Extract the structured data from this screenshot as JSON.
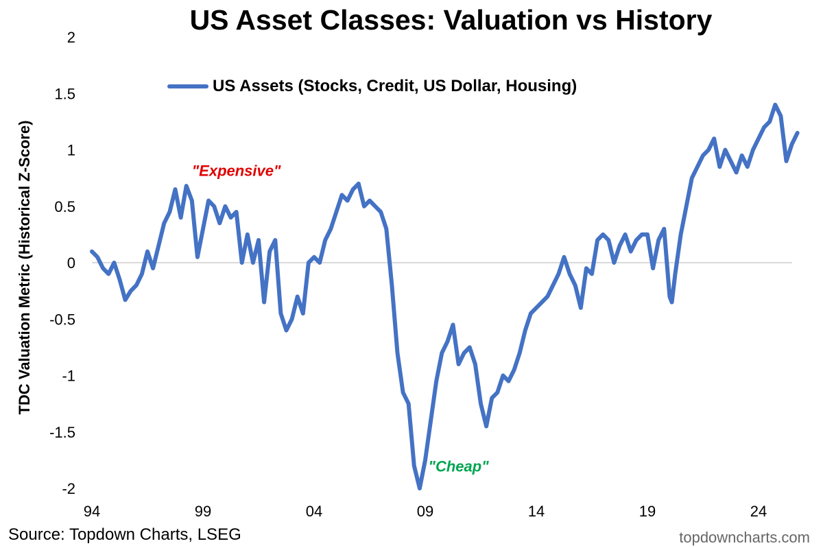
{
  "title": "US Asset Classes: Valuation vs History",
  "ylabel": "TDC Valuation Metric (Historical Z-Score)",
  "legend_label": "US Assets (Stocks, Credit, US Dollar, Housing)",
  "source": "Source: Topdown Charts, LSEG",
  "watermark": "topdowncharts.com",
  "colors": {
    "line": "#4472C4",
    "expensive": "#E00000",
    "cheap": "#00A550",
    "zero_line": "#D9D9D9"
  },
  "chart_data": {
    "type": "line",
    "title": "US Asset Classes: Valuation vs History",
    "xlabel": "",
    "ylabel": "TDC Valuation Metric (Historical Z-Score)",
    "ylim": [
      -2,
      2
    ],
    "xlim": [
      1994,
      2025.8
    ],
    "x_ticks": [
      1994,
      1999,
      2004,
      2009,
      2014,
      2019,
      2024
    ],
    "x_tick_labels": [
      "94",
      "99",
      "04",
      "09",
      "14",
      "19",
      "24"
    ],
    "y_ticks": [
      2,
      1.5,
      1,
      0.5,
      0,
      -0.5,
      -1,
      -1.5,
      -2
    ],
    "y_tick_labels": [
      "2",
      "1.5",
      "1",
      "0.5",
      "0",
      "-0.5",
      "-1",
      "-1.5",
      "-2"
    ],
    "grid": false,
    "legend_position": "top-left",
    "annotations": [
      {
        "text": "\"Expensive\"",
        "x": 2000.5,
        "y": 0.77,
        "color_key": "expensive"
      },
      {
        "text": "\"Cheap\"",
        "x": 2010.5,
        "y": -1.85,
        "color_key": "cheap"
      }
    ],
    "series": [
      {
        "name": "US Assets (Stocks, Credit, US Dollar, Housing)",
        "x": [
          1994.0,
          1994.25,
          1994.5,
          1994.75,
          1995.0,
          1995.25,
          1995.5,
          1995.75,
          1996.0,
          1996.25,
          1996.5,
          1996.75,
          1997.0,
          1997.25,
          1997.5,
          1997.75,
          1998.0,
          1998.25,
          1998.5,
          1998.75,
          1999.0,
          1999.25,
          1999.5,
          1999.75,
          2000.0,
          2000.25,
          2000.5,
          2000.75,
          2001.0,
          2001.25,
          2001.5,
          2001.75,
          2002.0,
          2002.25,
          2002.5,
          2002.75,
          2003.0,
          2003.25,
          2003.5,
          2003.75,
          2004.0,
          2004.25,
          2004.5,
          2004.75,
          2005.0,
          2005.25,
          2005.5,
          2005.75,
          2006.0,
          2006.25,
          2006.5,
          2006.75,
          2007.0,
          2007.25,
          2007.5,
          2007.75,
          2008.0,
          2008.25,
          2008.5,
          2008.75,
          2009.0,
          2009.25,
          2009.5,
          2009.75,
          2010.0,
          2010.25,
          2010.5,
          2010.75,
          2011.0,
          2011.25,
          2011.5,
          2011.75,
          2012.0,
          2012.25,
          2012.5,
          2012.75,
          2013.0,
          2013.25,
          2013.5,
          2013.75,
          2014.0,
          2014.25,
          2014.5,
          2014.75,
          2015.0,
          2015.25,
          2015.5,
          2015.75,
          2016.0,
          2016.25,
          2016.5,
          2016.75,
          2017.0,
          2017.25,
          2017.5,
          2017.75,
          2018.0,
          2018.25,
          2018.5,
          2018.75,
          2019.0,
          2019.25,
          2019.5,
          2019.75,
          2020.0,
          2020.1,
          2020.25,
          2020.5,
          2020.75,
          2021.0,
          2021.25,
          2021.5,
          2021.75,
          2022.0,
          2022.25,
          2022.5,
          2022.75,
          2023.0,
          2023.25,
          2023.5,
          2023.75,
          2024.0,
          2024.25,
          2024.5,
          2024.75,
          2025.0,
          2025.25,
          2025.5,
          2025.75
        ],
        "values": [
          0.1,
          0.05,
          -0.05,
          -0.1,
          0.0,
          -0.15,
          -0.33,
          -0.25,
          -0.2,
          -0.1,
          0.1,
          -0.05,
          0.15,
          0.35,
          0.45,
          0.65,
          0.4,
          0.68,
          0.55,
          0.05,
          0.3,
          0.55,
          0.5,
          0.35,
          0.5,
          0.4,
          0.45,
          0.0,
          0.25,
          0.0,
          0.2,
          -0.35,
          0.1,
          0.2,
          -0.45,
          -0.6,
          -0.5,
          -0.3,
          -0.45,
          0.0,
          0.05,
          0.0,
          0.2,
          0.3,
          0.45,
          0.6,
          0.55,
          0.65,
          0.7,
          0.5,
          0.55,
          0.5,
          0.45,
          0.3,
          -0.2,
          -0.8,
          -1.15,
          -1.25,
          -1.8,
          -2.0,
          -1.75,
          -1.4,
          -1.05,
          -0.8,
          -0.7,
          -0.55,
          -0.9,
          -0.8,
          -0.75,
          -0.9,
          -1.25,
          -1.45,
          -1.2,
          -1.15,
          -1.0,
          -1.05,
          -0.95,
          -0.8,
          -0.6,
          -0.45,
          -0.4,
          -0.35,
          -0.3,
          -0.2,
          -0.1,
          0.05,
          -0.1,
          -0.2,
          -0.4,
          -0.05,
          -0.1,
          0.2,
          0.25,
          0.2,
          0.0,
          0.15,
          0.25,
          0.1,
          0.2,
          0.25,
          0.25,
          -0.05,
          0.2,
          0.3,
          -0.3,
          -0.35,
          -0.1,
          0.25,
          0.5,
          0.75,
          0.85,
          0.95,
          1.0,
          1.1,
          0.85,
          1.0,
          0.9,
          0.8,
          0.95,
          0.85,
          1.0,
          1.1,
          1.2,
          1.25,
          1.4,
          1.3,
          0.9,
          1.05,
          1.15
        ]
      }
    ]
  }
}
